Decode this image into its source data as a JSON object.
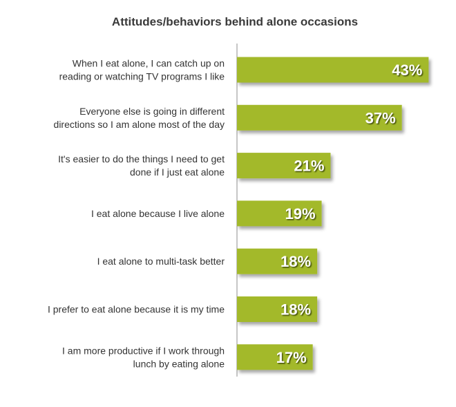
{
  "chart_data": {
    "type": "bar",
    "orientation": "horizontal",
    "title": "Attitudes/behaviors behind alone occasions",
    "xlabel": "",
    "ylabel": "",
    "xlim": [
      0,
      50
    ],
    "grid": false,
    "legend": "none",
    "bar_color": "#a3b92a",
    "categories": [
      [
        "When I eat alone, I can catch up on",
        "reading or watching TV programs I like"
      ],
      [
        "Everyone else is going in different",
        "directions so I am alone most of the day"
      ],
      [
        "It's easier to do the things I need to get",
        "done if I just eat alone"
      ],
      [
        "I eat alone because I live alone"
      ],
      [
        "I eat alone to multi-task better"
      ],
      [
        "I prefer to eat alone because it is my time"
      ],
      [
        "I am more productive if I work through",
        "lunch by eating alone"
      ]
    ],
    "values": [
      43,
      37,
      21,
      19,
      18,
      18,
      17
    ],
    "value_labels": [
      "43%",
      "37%",
      "21%",
      "19%",
      "18%",
      "18%",
      "17%"
    ]
  }
}
